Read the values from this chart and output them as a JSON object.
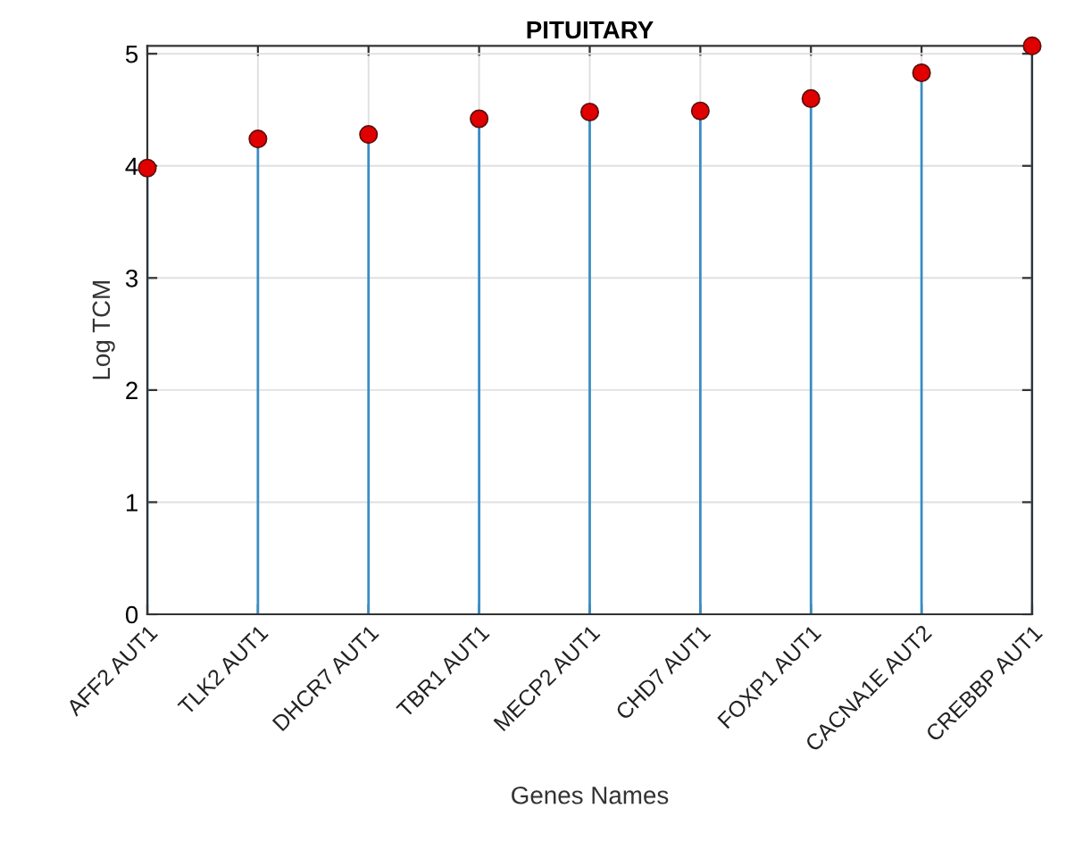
{
  "chart_data": {
    "type": "lollipop",
    "title": "PITUITARY",
    "xlabel": "Genes Names",
    "ylabel": "Log TCM",
    "categories": [
      "AFF2 AUT1",
      "TLK2 AUT1",
      "DHCR7 AUT1",
      "TBR1 AUT1",
      "MECP2 AUT1",
      "CHD7 AUT1",
      "FOXP1 AUT1",
      "CACNA1E AUT2",
      "CREBBP AUT1"
    ],
    "series": [
      {
        "color": "#e00000",
        "values": [
          3.98,
          4.24,
          4.28,
          4.42,
          4.48,
          4.49,
          4.6,
          4.83,
          5.07
        ]
      }
    ],
    "ylim": [
      0,
      5.07
    ],
    "yticks": [
      0,
      1,
      2,
      3,
      4,
      5
    ],
    "grid": true,
    "marker": "circle"
  }
}
